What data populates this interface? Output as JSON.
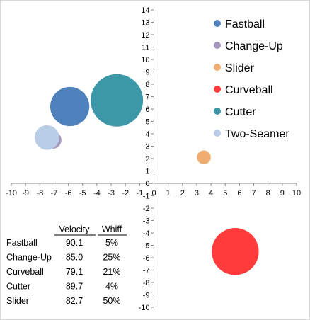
{
  "chart_data": {
    "type": "bubble",
    "xlim": [
      -10,
      10
    ],
    "ylim": [
      -10,
      14
    ],
    "x_ticks": [
      -10,
      -9,
      -8,
      -7,
      -6,
      -5,
      -4,
      -3,
      -2,
      -1,
      0,
      1,
      2,
      3,
      4,
      5,
      6,
      7,
      8,
      9,
      10
    ],
    "y_ticks": [
      -10,
      -9,
      -8,
      -7,
      -6,
      -5,
      -4,
      -3,
      -2,
      -1,
      0,
      1,
      2,
      3,
      4,
      5,
      6,
      7,
      8,
      9,
      10,
      11,
      12,
      13,
      14
    ],
    "grid": false,
    "legend_position": "top-right",
    "series": [
      {
        "name": "Fastball",
        "x": -5.9,
        "y": 6.2,
        "size": 20,
        "color": "#4F81BD"
      },
      {
        "name": "Change-Up",
        "x": -7.1,
        "y": 3.5,
        "size": 4,
        "color": "#A497BD"
      },
      {
        "name": "Slider",
        "x": 3.5,
        "y": 2.1,
        "size": 2.5,
        "color": "#F0AD72"
      },
      {
        "name": "Curveball",
        "x": 5.7,
        "y": -5.5,
        "size": 29,
        "color": "#FF3B3B"
      },
      {
        "name": "Cutter",
        "x": -2.6,
        "y": 6.7,
        "size": 36,
        "color": "#3C97A8"
      },
      {
        "name": "Two-Seamer",
        "x": -7.5,
        "y": 3.7,
        "size": 8,
        "color": "#B9CDE6"
      }
    ]
  },
  "table": {
    "headers": [
      "Velocity",
      "Whiff"
    ],
    "rows": [
      {
        "pitch": "Fastball",
        "velocity": "90.1",
        "whiff": "5%"
      },
      {
        "pitch": "Change-Up",
        "velocity": "85.0",
        "whiff": "25%"
      },
      {
        "pitch": "Curveball",
        "velocity": "79.1",
        "whiff": "21%"
      },
      {
        "pitch": "Cutter",
        "velocity": "89.7",
        "whiff": "4%"
      },
      {
        "pitch": "Slider",
        "velocity": "82.7",
        "whiff": "50%"
      }
    ]
  }
}
